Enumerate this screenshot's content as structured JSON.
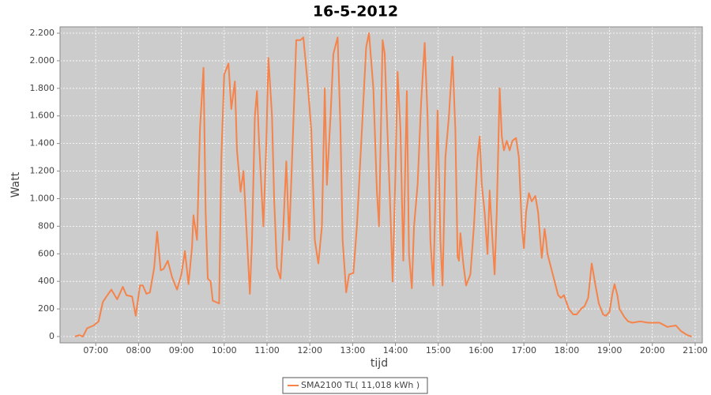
{
  "chart_data": {
    "type": "line",
    "title": "16-5-2012",
    "x_label": "tijd",
    "y_label": "Watt",
    "xlim": [
      "06:10",
      "21:10"
    ],
    "xticks": [
      "07:00",
      "08:00",
      "09:00",
      "10:00",
      "11:00",
      "12:00",
      "13:00",
      "14:00",
      "15:00",
      "16:00",
      "17:00",
      "18:00",
      "19:00",
      "20:00",
      "21:00"
    ],
    "ylim": [
      -46,
      2246
    ],
    "yticks": [
      0,
      200,
      400,
      600,
      800,
      {
        "value": 1000,
        "label": "1.000"
      },
      {
        "value": 1200,
        "label": "1.200"
      },
      {
        "value": 1400,
        "label": "1.400"
      },
      {
        "value": 1600,
        "label": "1.600"
      },
      {
        "value": 1800,
        "label": "1.800"
      },
      {
        "value": 2000,
        "label": "2.000"
      },
      {
        "value": 2200,
        "label": "2.200"
      }
    ],
    "grid": true,
    "legend": "bottom",
    "x": [
      "06:31",
      "06:37",
      "06:42",
      "06:48",
      "06:57",
      "07:04",
      "07:10",
      "07:15",
      "07:22",
      "07:30",
      "07:38",
      "07:43",
      "07:51",
      "07:56",
      "08:02",
      "08:06",
      "08:11",
      "08:16",
      "08:22",
      "08:26",
      "08:31",
      "08:35",
      "08:41",
      "08:47",
      "08:54",
      "09:00",
      "09:05",
      "09:10",
      "09:15",
      "09:17",
      "09:22",
      "09:26",
      "09:31",
      "09:34",
      "09:37",
      "09:41",
      "09:44",
      "09:53",
      "09:56",
      "10:00",
      "10:06",
      "10:10",
      "10:15",
      "10:18",
      "10:23",
      "10:27",
      "10:30",
      "10:36",
      "10:39",
      "10:43",
      "10:46",
      "10:49",
      "10:55",
      "10:59",
      "11:02",
      "11:07",
      "11:10",
      "11:14",
      "11:19",
      "11:23",
      "11:27",
      "11:31",
      "11:38",
      "11:41",
      "11:47",
      "11:51",
      "11:57",
      "12:02",
      "12:07",
      "12:12",
      "12:17",
      "12:21",
      "12:24",
      "12:29",
      "12:33",
      "12:39",
      "12:43",
      "12:46",
      "12:51",
      "12:55",
      "13:01",
      "13:06",
      "13:13",
      "13:19",
      "13:23",
      "13:29",
      "13:34",
      "13:37",
      "13:42",
      "13:45",
      "13:48",
      "13:53",
      "13:56",
      "14:00",
      "14:03",
      "14:07",
      "14:11",
      "14:14",
      "14:16",
      "14:19",
      "14:23",
      "14:26",
      "14:31",
      "14:36",
      "14:41",
      "14:45",
      "14:49",
      "14:53",
      "14:56",
      "14:59",
      "15:03",
      "15:06",
      "15:10",
      "15:15",
      "15:20",
      "15:24",
      "15:27",
      "15:29",
      "15:31",
      "15:35",
      "15:39",
      "15:45",
      "15:50",
      "15:55",
      "15:58",
      "16:01",
      "16:05",
      "16:09",
      "16:12",
      "16:16",
      "16:19",
      "16:22",
      "16:26",
      "16:29",
      "16:32",
      "16:36",
      "16:40",
      "16:44",
      "16:49",
      "16:53",
      "16:57",
      "17:00",
      "17:03",
      "17:07",
      "17:11",
      "17:16",
      "17:20",
      "17:23",
      "17:25",
      "17:29",
      "17:31",
      "17:33",
      "17:38",
      "17:43",
      "17:48",
      "17:52",
      "17:56",
      "18:03",
      "18:09",
      "18:14",
      "18:20",
      "18:25",
      "18:30",
      "18:35",
      "18:40",
      "18:45",
      "18:51",
      "18:55",
      "19:00",
      "19:04",
      "19:07",
      "19:11",
      "19:14",
      "19:21",
      "19:26",
      "19:32",
      "19:43",
      "19:54",
      "20:10",
      "20:21",
      "20:33",
      "20:40",
      "20:49",
      "20:55"
    ],
    "series": [
      {
        "name": "SMA2100 TL( 11,018 kWh )",
        "color": "#f5834a",
        "values": [
          0,
          10,
          0,
          60,
          80,
          110,
          250,
          290,
          340,
          270,
          360,
          300,
          290,
          150,
          370,
          370,
          310,
          320,
          500,
          760,
          480,
          490,
          550,
          430,
          340,
          450,
          620,
          380,
          650,
          880,
          700,
          1500,
          1950,
          900,
          420,
          400,
          260,
          240,
          1300,
          1900,
          1980,
          1650,
          1850,
          1350,
          1050,
          1200,
          900,
          310,
          700,
          1600,
          1780,
          1400,
          800,
          1400,
          2020,
          1600,
          1000,
          500,
          420,
          800,
          1270,
          700,
          1700,
          2150,
          2150,
          2170,
          1830,
          1500,
          700,
          530,
          800,
          1800,
          1100,
          1600,
          2050,
          2170,
          1500,
          700,
          320,
          450,
          460,
          800,
          1500,
          2100,
          2200,
          1800,
          1050,
          800,
          2150,
          2050,
          1600,
          900,
          400,
          1200,
          1920,
          1500,
          550,
          1300,
          1780,
          600,
          350,
          800,
          1100,
          1700,
          2130,
          1600,
          700,
          370,
          1000,
          1640,
          700,
          370,
          1300,
          1600,
          2030,
          1500,
          580,
          550,
          750,
          530,
          370,
          450,
          800,
          1300,
          1450,
          1100,
          900,
          600,
          1060,
          700,
          450,
          900,
          1800,
          1450,
          1350,
          1420,
          1350,
          1420,
          1440,
          1300,
          800,
          640,
          900,
          1040,
          980,
          1020,
          900,
          700,
          570,
          780,
          700,
          600,
          500,
          400,
          300,
          280,
          300,
          200,
          160,
          160,
          200,
          220,
          280,
          530,
          380,
          240,
          160,
          150,
          180,
          310,
          380,
          300,
          200,
          140,
          110,
          100,
          110,
          100,
          100,
          70,
          80,
          40,
          10,
          0
        ]
      }
    ]
  }
}
